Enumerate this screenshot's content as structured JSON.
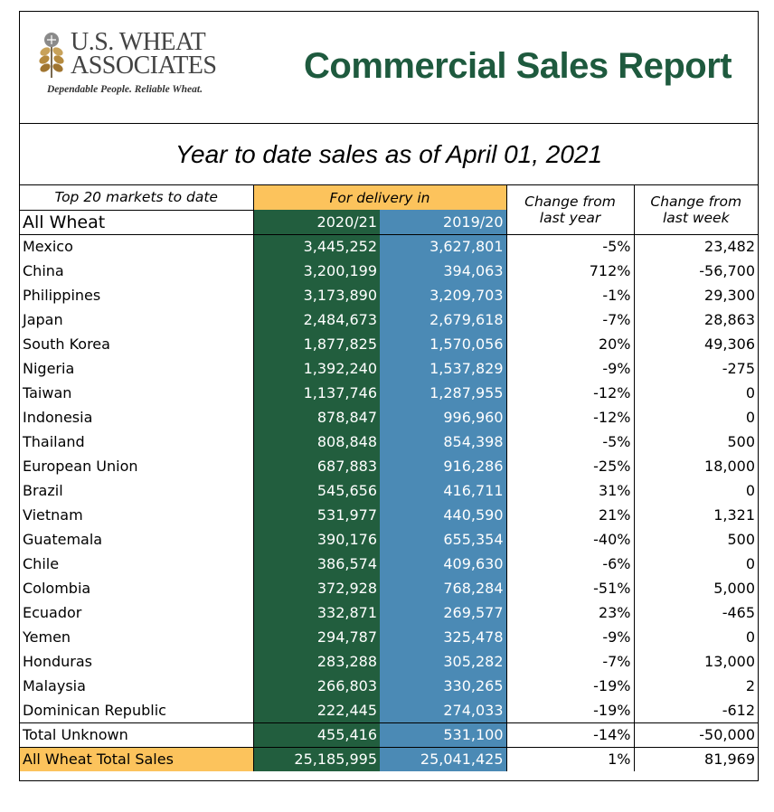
{
  "logo": {
    "line1": "U.S. WHEAT",
    "line2": "ASSOCIATES",
    "tagline": "Dependable People. Reliable Wheat."
  },
  "report_title": "Commercial Sales Report",
  "subtitle": "Year to date sales as of April 01, 2021",
  "table": {
    "header_top20": "Top 20 markets to date",
    "header_delivery": "For delivery in",
    "header_change_year_1": "Change from",
    "header_change_year_2": "last year",
    "header_change_week_1": "Change from",
    "header_change_week_2": "last week",
    "header_all_wheat": "All Wheat",
    "year_a": "2020/21",
    "year_b": "2019/20",
    "rows": [
      {
        "name": "Mexico",
        "a": "3,445,252",
        "b": "3,627,801",
        "c": "-5%",
        "d": "23,482"
      },
      {
        "name": "China",
        "a": "3,200,199",
        "b": "394,063",
        "c": "712%",
        "d": "-56,700"
      },
      {
        "name": "Philippines",
        "a": "3,173,890",
        "b": "3,209,703",
        "c": "-1%",
        "d": "29,300"
      },
      {
        "name": "Japan",
        "a": "2,484,673",
        "b": "2,679,618",
        "c": "-7%",
        "d": "28,863"
      },
      {
        "name": "South Korea",
        "a": "1,877,825",
        "b": "1,570,056",
        "c": "20%",
        "d": "49,306"
      },
      {
        "name": "Nigeria",
        "a": "1,392,240",
        "b": "1,537,829",
        "c": "-9%",
        "d": "-275"
      },
      {
        "name": "Taiwan",
        "a": "1,137,746",
        "b": "1,287,955",
        "c": "-12%",
        "d": "0"
      },
      {
        "name": "Indonesia",
        "a": "878,847",
        "b": "996,960",
        "c": "-12%",
        "d": "0"
      },
      {
        "name": "Thailand",
        "a": "808,848",
        "b": "854,398",
        "c": "-5%",
        "d": "500"
      },
      {
        "name": "European Union",
        "a": "687,883",
        "b": "916,286",
        "c": "-25%",
        "d": "18,000"
      },
      {
        "name": "Brazil",
        "a": "545,656",
        "b": "416,711",
        "c": "31%",
        "d": "0"
      },
      {
        "name": "Vietnam",
        "a": "531,977",
        "b": "440,590",
        "c": "21%",
        "d": "1,321"
      },
      {
        "name": "Guatemala",
        "a": "390,176",
        "b": "655,354",
        "c": "-40%",
        "d": "500"
      },
      {
        "name": "Chile",
        "a": "386,574",
        "b": "409,630",
        "c": "-6%",
        "d": "0"
      },
      {
        "name": "Colombia",
        "a": "372,928",
        "b": "768,284",
        "c": "-51%",
        "d": "5,000"
      },
      {
        "name": "Ecuador",
        "a": "332,871",
        "b": "269,577",
        "c": "23%",
        "d": "-465"
      },
      {
        "name": "Yemen",
        "a": "294,787",
        "b": "325,478",
        "c": "-9%",
        "d": "0"
      },
      {
        "name": "Honduras",
        "a": "283,288",
        "b": "305,282",
        "c": "-7%",
        "d": "13,000"
      },
      {
        "name": "Malaysia",
        "a": "266,803",
        "b": "330,265",
        "c": "-19%",
        "d": "2"
      },
      {
        "name": "Dominican Republic",
        "a": "222,445",
        "b": "274,033",
        "c": "-19%",
        "d": "-612"
      }
    ],
    "unknown": {
      "name": "Total Unknown",
      "a": "455,416",
      "b": "531,100",
      "c": "-14%",
      "d": "-50,000"
    },
    "total": {
      "name": "All Wheat Total Sales",
      "a": "25,185,995",
      "b": "25,041,425",
      "c": "1%",
      "d": "81,969"
    }
  },
  "colors": {
    "title_green": "#1e5a3e",
    "column_green": "#225e3e",
    "column_blue": "#4b8ab5",
    "highlight_orange": "#fcc35c"
  }
}
